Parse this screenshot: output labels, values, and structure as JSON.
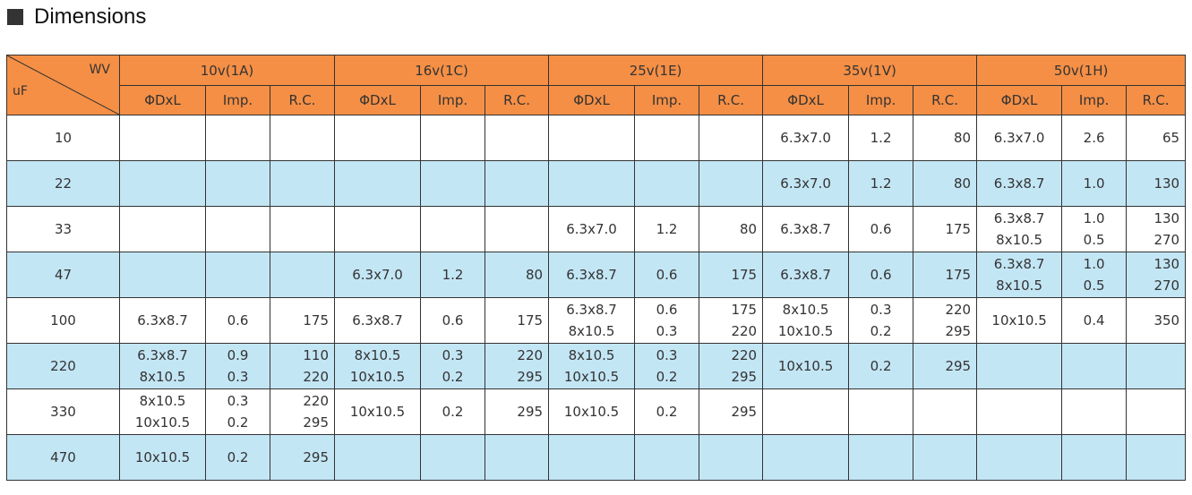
{
  "title": "Dimensions",
  "header": {
    "corner_top": "WV",
    "corner_bottom": "uF",
    "groups": [
      "10v(1A)",
      "16v(1C)",
      "25v(1E)",
      "35v(1V)",
      "50v(1H)"
    ],
    "sub": [
      "ΦDxL",
      "Imp.",
      "R.C."
    ]
  },
  "rows": [
    {
      "uf": "10",
      "cells": [
        [
          "",
          ""
        ],
        [
          "",
          ""
        ],
        [
          "",
          ""
        ],
        [
          "",
          ""
        ],
        [
          "",
          ""
        ],
        [
          "",
          ""
        ],
        [
          "",
          ""
        ],
        [
          "",
          ""
        ],
        [
          "",
          ""
        ],
        [
          "6.3x7.0",
          ""
        ],
        [
          "1.2",
          ""
        ],
        [
          "80",
          ""
        ],
        [
          "6.3x7.0",
          ""
        ],
        [
          "2.6",
          ""
        ],
        [
          "65",
          ""
        ]
      ]
    },
    {
      "uf": "22",
      "cells": [
        [
          "",
          ""
        ],
        [
          "",
          ""
        ],
        [
          "",
          ""
        ],
        [
          "",
          ""
        ],
        [
          "",
          ""
        ],
        [
          "",
          ""
        ],
        [
          "",
          ""
        ],
        [
          "",
          ""
        ],
        [
          "",
          ""
        ],
        [
          "6.3x7.0",
          ""
        ],
        [
          "1.2",
          ""
        ],
        [
          "80",
          ""
        ],
        [
          "6.3x8.7",
          ""
        ],
        [
          "1.0",
          ""
        ],
        [
          "130",
          ""
        ]
      ]
    },
    {
      "uf": "33",
      "cells": [
        [
          "",
          ""
        ],
        [
          "",
          ""
        ],
        [
          "",
          ""
        ],
        [
          "",
          ""
        ],
        [
          "",
          ""
        ],
        [
          "",
          ""
        ],
        [
          "6.3x7.0",
          ""
        ],
        [
          "1.2",
          ""
        ],
        [
          "80",
          ""
        ],
        [
          "6.3x8.7",
          ""
        ],
        [
          "0.6",
          ""
        ],
        [
          "175",
          ""
        ],
        [
          "6.3x8.7",
          "8x10.5"
        ],
        [
          "1.0",
          "0.5"
        ],
        [
          "130",
          "270"
        ]
      ]
    },
    {
      "uf": "47",
      "cells": [
        [
          "",
          ""
        ],
        [
          "",
          ""
        ],
        [
          "",
          ""
        ],
        [
          "6.3x7.0",
          ""
        ],
        [
          "1.2",
          ""
        ],
        [
          "80",
          ""
        ],
        [
          "6.3x8.7",
          ""
        ],
        [
          "0.6",
          ""
        ],
        [
          "175",
          ""
        ],
        [
          "6.3x8.7",
          ""
        ],
        [
          "0.6",
          ""
        ],
        [
          "175",
          ""
        ],
        [
          "6.3x8.7",
          "8x10.5"
        ],
        [
          "1.0",
          "0.5"
        ],
        [
          "130",
          "270"
        ]
      ]
    },
    {
      "uf": "100",
      "cells": [
        [
          "6.3x8.7",
          ""
        ],
        [
          "0.6",
          ""
        ],
        [
          "175",
          ""
        ],
        [
          "6.3x8.7",
          ""
        ],
        [
          "0.6",
          ""
        ],
        [
          "175",
          ""
        ],
        [
          "6.3x8.7",
          "8x10.5"
        ],
        [
          "0.6",
          "0.3"
        ],
        [
          "175",
          "220"
        ],
        [
          "8x10.5",
          "10x10.5"
        ],
        [
          "0.3",
          "0.2"
        ],
        [
          "220",
          "295"
        ],
        [
          "10x10.5",
          ""
        ],
        [
          "0.4",
          ""
        ],
        [
          "350",
          ""
        ]
      ]
    },
    {
      "uf": "220",
      "cells": [
        [
          "6.3x8.7",
          "8x10.5"
        ],
        [
          "0.9",
          "0.3"
        ],
        [
          "110",
          "220"
        ],
        [
          "8x10.5",
          "10x10.5"
        ],
        [
          "0.3",
          "0.2"
        ],
        [
          "220",
          "295"
        ],
        [
          "8x10.5",
          "10x10.5"
        ],
        [
          "0.3",
          "0.2"
        ],
        [
          "220",
          "295"
        ],
        [
          "10x10.5",
          ""
        ],
        [
          "0.2",
          ""
        ],
        [
          "295",
          ""
        ],
        [
          "",
          ""
        ],
        [
          "",
          ""
        ],
        [
          "",
          ""
        ]
      ]
    },
    {
      "uf": "330",
      "cells": [
        [
          "8x10.5",
          "10x10.5"
        ],
        [
          "0.3",
          "0.2"
        ],
        [
          "220",
          "295"
        ],
        [
          "10x10.5",
          ""
        ],
        [
          "0.2",
          ""
        ],
        [
          "295",
          ""
        ],
        [
          "10x10.5",
          ""
        ],
        [
          "0.2",
          ""
        ],
        [
          "295",
          ""
        ],
        [
          "",
          ""
        ],
        [
          "",
          ""
        ],
        [
          "",
          ""
        ],
        [
          "",
          ""
        ],
        [
          "",
          ""
        ],
        [
          "",
          ""
        ]
      ]
    },
    {
      "uf": "470",
      "cells": [
        [
          "10x10.5",
          ""
        ],
        [
          "0.2",
          ""
        ],
        [
          "295",
          ""
        ],
        [
          "",
          ""
        ],
        [
          "",
          ""
        ],
        [
          "",
          ""
        ],
        [
          "",
          ""
        ],
        [
          "",
          ""
        ],
        [
          "",
          ""
        ],
        [
          "",
          ""
        ],
        [
          "",
          ""
        ],
        [
          "",
          ""
        ],
        [
          "",
          ""
        ],
        [
          "",
          ""
        ],
        [
          "",
          ""
        ]
      ]
    }
  ]
}
